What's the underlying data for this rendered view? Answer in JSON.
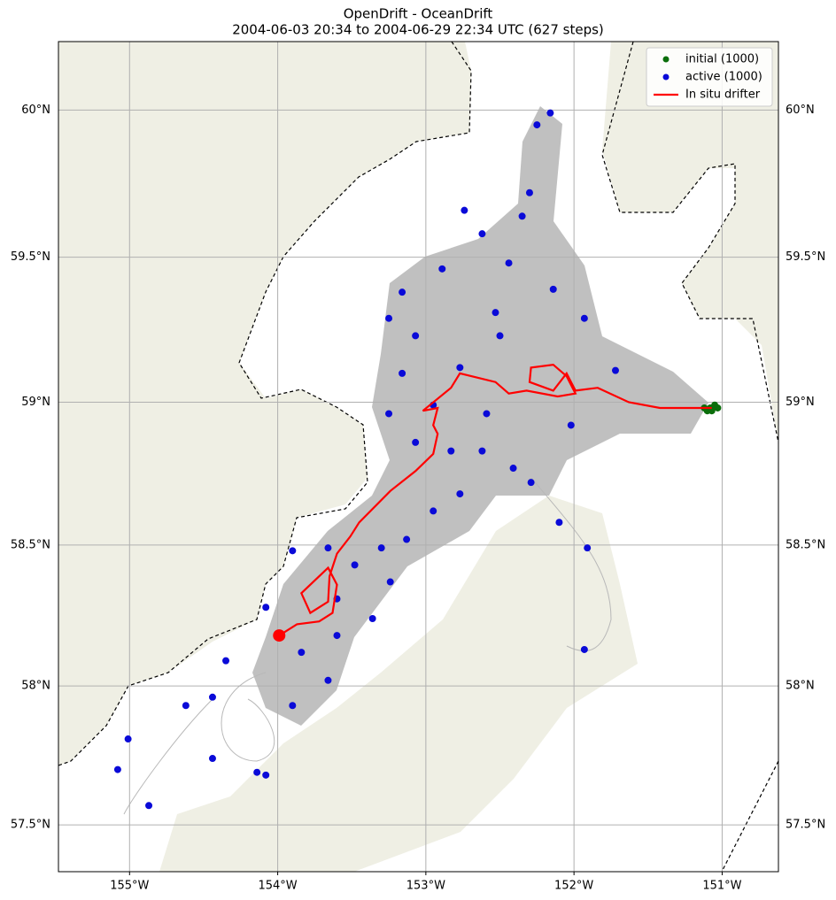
{
  "chart_data": {
    "type": "scatter",
    "title": "OpenDrift - OceanDrift",
    "subtitle": "2004-06-03 20:34 to 2004-06-29 22:34 UTC (627 steps)",
    "projection": "mercator",
    "grid": true,
    "legend": "upper right",
    "xlim": [
      -155.48,
      -150.62
    ],
    "ylim": [
      57.33,
      60.23
    ],
    "xticks": [
      {
        "value": -155,
        "label": "155°W"
      },
      {
        "value": -154,
        "label": "154°W"
      },
      {
        "value": -153,
        "label": "153°W"
      },
      {
        "value": -152,
        "label": "152°W"
      },
      {
        "value": -151,
        "label": "151°W"
      }
    ],
    "yticks": [
      {
        "value": 57.5,
        "label": "57.5°N"
      },
      {
        "value": 58,
        "label": "58°N"
      },
      {
        "value": 58.5,
        "label": "58.5°N"
      },
      {
        "value": 59,
        "label": "59°N"
      },
      {
        "value": 59.5,
        "label": "59.5°N"
      },
      {
        "value": 60,
        "label": "60°N"
      }
    ],
    "series": [
      {
        "name": "initial (1000)",
        "color": "#0b6e0b",
        "style": "points",
        "x": [
          -151.08,
          -151.05,
          -151.1,
          -151.03,
          -151.07,
          -151.12
        ],
        "values": [
          58.98,
          58.99,
          58.97,
          58.98,
          58.97,
          58.98
        ]
      },
      {
        "name": "active (1000)",
        "color": "#0a0ad8",
        "style": "points",
        "x": [
          -152.16,
          -152.25,
          -152.3,
          -152.74,
          -152.62,
          -152.89,
          -153.16,
          -153.25,
          -153.07,
          -152.77,
          -153.16,
          -153.25,
          -153.07,
          -152.83,
          -152.62,
          -152.41,
          -152.29,
          -151.93,
          -151.72,
          -152.02,
          -152.1,
          -151.91,
          -151.93,
          -152.77,
          -152.95,
          -153.13,
          -153.3,
          -153.48,
          -153.66,
          -153.9,
          -153.24,
          -153.36,
          -153.6,
          -153.84,
          -153.66,
          -153.9,
          -154.08,
          -154.35,
          -154.44,
          -154.62,
          -155.01,
          -155.08,
          -154.87,
          -154.44,
          -154.08,
          -154.14,
          -153.6,
          -152.53,
          -152.44,
          -152.35,
          -152.14,
          -152.95,
          -152.59,
          -152.5
        ],
        "values": [
          59.99,
          59.95,
          59.72,
          59.66,
          59.58,
          59.46,
          59.38,
          59.29,
          59.23,
          59.12,
          59.1,
          58.96,
          58.86,
          58.83,
          58.83,
          58.77,
          58.72,
          59.29,
          59.11,
          58.92,
          58.58,
          58.49,
          58.13,
          58.68,
          58.62,
          58.52,
          58.49,
          58.43,
          58.49,
          58.48,
          58.37,
          58.24,
          58.18,
          58.12,
          58.02,
          57.93,
          58.28,
          58.09,
          57.96,
          57.93,
          57.81,
          57.7,
          57.57,
          57.74,
          57.68,
          57.69,
          58.31,
          59.31,
          59.48,
          59.64,
          59.39,
          58.99,
          58.96,
          59.23
        ]
      },
      {
        "name": "In situ drifter",
        "color": "#ff0000",
        "style": "line",
        "x": [
          -151.07,
          -151.42,
          -151.63,
          -151.84,
          -151.99,
          -152.05,
          -152.14,
          -152.3,
          -152.29,
          -152.14,
          -152.05,
          -151.99,
          -152.11,
          -152.32,
          -152.44,
          -152.53,
          -152.77,
          -152.83,
          -153.02,
          -152.92,
          -152.95,
          -152.92,
          -152.95,
          -153.07,
          -153.24,
          -153.45,
          -153.51,
          -153.6,
          -153.65,
          -153.66,
          -153.78,
          -153.84,
          -153.66,
          -153.6,
          -153.63,
          -153.72,
          -153.87,
          -153.99
        ],
        "values": [
          58.98,
          58.98,
          59.0,
          59.05,
          59.04,
          59.1,
          59.04,
          59.07,
          59.12,
          59.13,
          59.09,
          59.03,
          59.02,
          59.04,
          59.03,
          59.07,
          59.1,
          59.05,
          58.97,
          58.98,
          58.92,
          58.89,
          58.82,
          58.76,
          58.69,
          58.58,
          58.53,
          58.47,
          58.39,
          58.3,
          58.26,
          58.33,
          58.42,
          58.36,
          58.26,
          58.23,
          58.22,
          58.18
        ]
      }
    ]
  }
}
